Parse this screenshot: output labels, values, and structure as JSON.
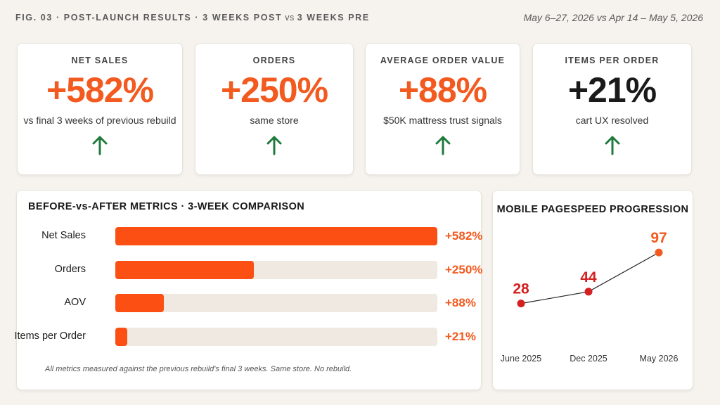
{
  "header": {
    "title": "FIG. 03 · POST-LAUNCH RESULTS · 3 WEEKS POST",
    "vs": " vs ",
    "title_tail": "3 WEEKS PRE",
    "dates": "May 6–27, 2026 vs Apr 14 – May 5, 2026"
  },
  "kpis": [
    {
      "label": "NET SALES",
      "value": "+582%",
      "sub": "vs final 3 weeks of previous rebuild",
      "trend": "up",
      "value_color": "#f25a1f"
    },
    {
      "label": "ORDERS",
      "value": "+250%",
      "sub": "same store",
      "trend": "up",
      "value_color": "#f25a1f"
    },
    {
      "label": "AVERAGE ORDER VALUE",
      "value": "+88%",
      "sub": "$50K mattress trust signals",
      "trend": "up",
      "value_color": "#f25a1f"
    },
    {
      "label": "ITEMS PER ORDER",
      "value": "+21%",
      "sub": "cart UX resolved",
      "trend": "up",
      "value_color": "#1a1a1a"
    }
  ],
  "chart_data": [
    {
      "type": "bar",
      "orientation": "horizontal",
      "title": "BEFORE-vs-AFTER METRICS · 3-WEEK COMPARISON",
      "categories": [
        "Net Sales",
        "Orders",
        "AOV",
        "Items per Order"
      ],
      "values": [
        582,
        250,
        88,
        21
      ],
      "value_labels": [
        "+582%",
        "+250%",
        "+88%",
        "+21%"
      ],
      "xlim": [
        0,
        582
      ],
      "bar_color": "#fb4f14",
      "track_color": "#efe9e2",
      "footnote": "All metrics measured against the previous rebuild's final 3 weeks. Same store. No rebuild."
    },
    {
      "type": "line",
      "title": "MOBILE PAGESPEED PROGRESSION",
      "x": [
        "June 2025",
        "Dec 2025",
        "May 2026"
      ],
      "values": [
        28,
        44,
        97
      ],
      "point_colors": [
        "#d42020",
        "#d42020",
        "#f25a1f"
      ],
      "ylim": [
        0,
        100
      ]
    }
  ],
  "colors": {
    "accent": "#f25a1f",
    "bar": "#fb4f14",
    "arrow_up": "#1f7a3c",
    "background": "#f6f3ee"
  },
  "icons": {
    "trend_up": "arrow-up-icon"
  }
}
